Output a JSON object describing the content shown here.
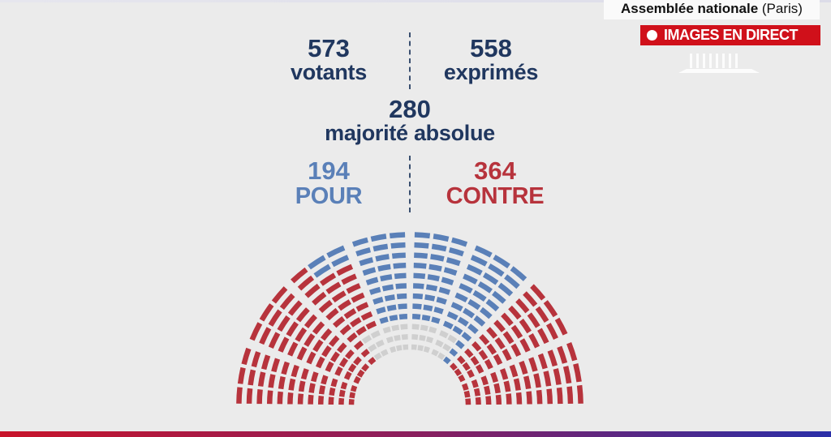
{
  "header": {
    "location_bold": "Assemblée nationale",
    "location_city": "(Paris)",
    "live_label": "IMAGES EN DIRECT",
    "logo": "assemblee-nationale-logo"
  },
  "vote": {
    "votants": {
      "value": "573",
      "label": "votants"
    },
    "exprimes": {
      "value": "558",
      "label": "exprimés"
    },
    "majorite": {
      "value": "280",
      "label": "majorité absolue"
    },
    "pour": {
      "value": "194",
      "label": "POUR"
    },
    "contre": {
      "value": "364",
      "label": "CONTRE"
    }
  },
  "colors": {
    "pour": "#5a80b8",
    "contre": "#b7333c",
    "abstention": "#cfcfcf",
    "live": "#d0101a",
    "text": "#20375f"
  }
}
